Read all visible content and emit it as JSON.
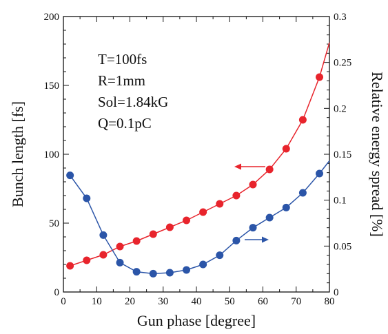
{
  "chart_data": {
    "type": "line",
    "title": "",
    "annotations": [
      "T=100fs",
      "R=1mm",
      "Sol=1.84kG",
      "Q=0.1pC"
    ],
    "xlabel": "Gun phase [degree]",
    "ylabel_left": "Bunch length [fs]",
    "ylabel_right": "Relative energy spread [%]",
    "xlim": [
      0,
      80
    ],
    "ylim_left": [
      0,
      200
    ],
    "ylim_right": [
      0,
      0.3
    ],
    "x_ticks": [
      "0",
      "10",
      "20",
      "30",
      "40",
      "50",
      "60",
      "70",
      "80"
    ],
    "y_left_ticks": [
      "0",
      "50",
      "100",
      "150",
      "200"
    ],
    "y_right_ticks": [
      "0",
      "0.05",
      "0.1",
      "0.15",
      "0.2",
      "0.25",
      "0.3"
    ],
    "grid": false,
    "legend": "none",
    "series": [
      {
        "axis": "left",
        "color": "#e8242c",
        "x": [
          2,
          7,
          12,
          17,
          22,
          27,
          32,
          37,
          42,
          47,
          52,
          57,
          62,
          67,
          72,
          77
        ],
        "values": [
          19,
          23,
          27,
          33,
          37,
          42,
          47,
          52,
          58,
          64,
          70,
          78,
          89,
          104,
          125,
          156
        ]
      },
      {
        "axis": "right",
        "color": "#2b55a8",
        "x": [
          2,
          7,
          12,
          17,
          22,
          27,
          32,
          37,
          42,
          47,
          52,
          57,
          62,
          67,
          72,
          77
        ],
        "values": [
          0.127,
          0.102,
          0.062,
          0.032,
          0.022,
          0.02,
          0.021,
          0.024,
          0.03,
          0.04,
          0.056,
          0.07,
          0.081,
          0.092,
          0.108,
          0.129
        ]
      }
    ]
  }
}
